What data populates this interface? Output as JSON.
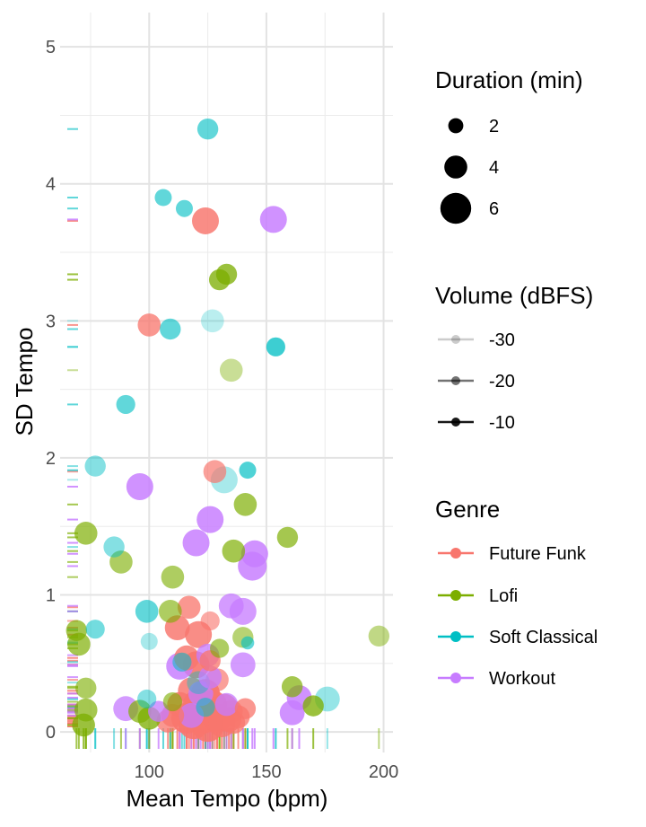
{
  "chart_data": {
    "type": "scatter",
    "title": "",
    "xlabel": "Mean Tempo (bpm)",
    "ylabel": "SD Tempo",
    "xlim": [
      62,
      204
    ],
    "ylim": [
      -0.15,
      5.25
    ],
    "x_ticks": [
      100,
      150,
      200
    ],
    "x_tick_labels": [
      "100",
      "150",
      "200"
    ],
    "y_ticks": [
      0,
      1,
      2,
      3,
      4,
      5
    ],
    "y_tick_labels": [
      "0",
      "1",
      "2",
      "3",
      "4",
      "5"
    ],
    "grid": true,
    "colors": {
      "Future Funk": "#F8766D",
      "Lofi": "#7CAE00",
      "Soft Classical": "#00BFC4",
      "Workout": "#C77CFF"
    },
    "legends": {
      "size": {
        "title": "Duration (min)",
        "entries": [
          {
            "label": "2",
            "value": 2
          },
          {
            "label": "4",
            "value": 4
          },
          {
            "label": "6",
            "value": 6
          }
        ]
      },
      "alpha": {
        "title": "Volume (dBFS)",
        "entries": [
          {
            "label": "-30",
            "value": -30
          },
          {
            "label": "-20",
            "value": -20
          },
          {
            "label": "-10",
            "value": -10
          }
        ]
      },
      "color": {
        "title": "Genre",
        "entries": [
          "Future Funk",
          "Lofi",
          "Soft Classical",
          "Workout"
        ]
      }
    },
    "rug": true,
    "series": [
      {
        "name": "Future Funk",
        "points": [
          {
            "x": 124,
            "y": 3.73,
            "duration": 5.0,
            "volume": -12
          },
          {
            "x": 100,
            "y": 2.97,
            "duration": 4.0,
            "volume": -14
          },
          {
            "x": 128,
            "y": 1.9,
            "duration": 4.0,
            "volume": -16
          },
          {
            "x": 117,
            "y": 0.91,
            "duration": 4.0,
            "volume": -14
          },
          {
            "x": 112,
            "y": 0.76,
            "duration": 4.5,
            "volume": -12
          },
          {
            "x": 121,
            "y": 0.71,
            "duration": 5.0,
            "volume": -12
          },
          {
            "x": 126,
            "y": 0.81,
            "duration": 3.0,
            "volume": -18
          },
          {
            "x": 116,
            "y": 0.54,
            "duration": 4.5,
            "volume": -12
          },
          {
            "x": 120,
            "y": 0.49,
            "duration": 5.0,
            "volume": -10
          },
          {
            "x": 126,
            "y": 0.52,
            "duration": 3.5,
            "volume": -14
          },
          {
            "x": 129,
            "y": 0.38,
            "duration": 4.0,
            "volume": -16
          },
          {
            "x": 118,
            "y": 0.3,
            "duration": 5.0,
            "volume": -12
          },
          {
            "x": 124,
            "y": 0.28,
            "duration": 5.5,
            "volume": -10
          },
          {
            "x": 113,
            "y": 0.2,
            "duration": 4.5,
            "volume": -12
          },
          {
            "x": 121,
            "y": 0.2,
            "duration": 6.0,
            "volume": -10
          },
          {
            "x": 127,
            "y": 0.2,
            "duration": 5.5,
            "volume": -10
          },
          {
            "x": 132,
            "y": 0.18,
            "duration": 5.0,
            "volume": -12
          },
          {
            "x": 135,
            "y": 0.15,
            "duration": 4.0,
            "volume": -14
          },
          {
            "x": 110,
            "y": 0.12,
            "duration": 4.0,
            "volume": -14
          },
          {
            "x": 116,
            "y": 0.1,
            "duration": 6.0,
            "volume": -10
          },
          {
            "x": 123,
            "y": 0.1,
            "duration": 6.0,
            "volume": -10
          },
          {
            "x": 129,
            "y": 0.1,
            "duration": 5.5,
            "volume": -10
          },
          {
            "x": 134,
            "y": 0.09,
            "duration": 4.5,
            "volume": -12
          },
          {
            "x": 138,
            "y": 0.11,
            "duration": 4.0,
            "volume": -14
          },
          {
            "x": 141,
            "y": 0.17,
            "duration": 3.5,
            "volume": -14
          },
          {
            "x": 108,
            "y": 0.08,
            "duration": 4.0,
            "volume": -14
          },
          {
            "x": 119,
            "y": 0.06,
            "duration": 6.0,
            "volume": -10
          },
          {
            "x": 125,
            "y": 0.04,
            "duration": 6.0,
            "volume": -10
          },
          {
            "x": 131,
            "y": 0.06,
            "duration": 5.0,
            "volume": -12
          },
          {
            "x": 136,
            "y": 0.07,
            "duration": 4.0,
            "volume": -14
          }
        ]
      },
      {
        "name": "Lofi",
        "points": [
          {
            "x": 130,
            "y": 3.3,
            "duration": 3.5,
            "volume": -14
          },
          {
            "x": 133,
            "y": 3.34,
            "duration": 3.5,
            "volume": -14
          },
          {
            "x": 135,
            "y": 2.64,
            "duration": 4.0,
            "volume": -24
          },
          {
            "x": 141,
            "y": 1.66,
            "duration": 4.0,
            "volume": -16
          },
          {
            "x": 73,
            "y": 1.45,
            "duration": 4.0,
            "volume": -16
          },
          {
            "x": 159,
            "y": 1.42,
            "duration": 3.5,
            "volume": -16
          },
          {
            "x": 136,
            "y": 1.32,
            "duration": 4.0,
            "volume": -16
          },
          {
            "x": 88,
            "y": 1.24,
            "duration": 4.0,
            "volume": -18
          },
          {
            "x": 110,
            "y": 1.13,
            "duration": 4.0,
            "volume": -18
          },
          {
            "x": 109,
            "y": 0.88,
            "duration": 4.0,
            "volume": -18
          },
          {
            "x": 69,
            "y": 0.74,
            "duration": 3.5,
            "volume": -16
          },
          {
            "x": 70,
            "y": 0.64,
            "duration": 4.0,
            "volume": -16
          },
          {
            "x": 140,
            "y": 0.69,
            "duration": 3.5,
            "volume": -20
          },
          {
            "x": 198,
            "y": 0.7,
            "duration": 3.5,
            "volume": -22
          },
          {
            "x": 130,
            "y": 0.61,
            "duration": 3.0,
            "volume": -18
          },
          {
            "x": 73,
            "y": 0.32,
            "duration": 3.5,
            "volume": -18
          },
          {
            "x": 161,
            "y": 0.33,
            "duration": 3.5,
            "volume": -16
          },
          {
            "x": 73,
            "y": 0.16,
            "duration": 4.0,
            "volume": -16
          },
          {
            "x": 170,
            "y": 0.19,
            "duration": 3.5,
            "volume": -14
          },
          {
            "x": 72,
            "y": 0.05,
            "duration": 4.0,
            "volume": -14
          },
          {
            "x": 100,
            "y": 0.1,
            "duration": 4.0,
            "volume": -14
          },
          {
            "x": 110,
            "y": 0.22,
            "duration": 3.0,
            "volume": -18
          },
          {
            "x": 96,
            "y": 0.15,
            "duration": 4.0,
            "volume": -16
          }
        ]
      },
      {
        "name": "Soft Classical",
        "points": [
          {
            "x": 125,
            "y": 4.4,
            "duration": 3.5,
            "volume": -18
          },
          {
            "x": 106,
            "y": 3.9,
            "duration": 2.5,
            "volume": -18
          },
          {
            "x": 115,
            "y": 3.82,
            "duration": 2.5,
            "volume": -18
          },
          {
            "x": 109,
            "y": 2.94,
            "duration": 3.5,
            "volume": -18
          },
          {
            "x": 127,
            "y": 3.0,
            "duration": 4.0,
            "volume": -28
          },
          {
            "x": 154,
            "y": 2.81,
            "duration": 3.0,
            "volume": -14
          },
          {
            "x": 90,
            "y": 2.39,
            "duration": 3.0,
            "volume": -18
          },
          {
            "x": 77,
            "y": 1.94,
            "duration": 3.5,
            "volume": -22
          },
          {
            "x": 132,
            "y": 1.84,
            "duration": 5.0,
            "volume": -26
          },
          {
            "x": 142,
            "y": 1.91,
            "duration": 2.5,
            "volume": -16
          },
          {
            "x": 85,
            "y": 1.35,
            "duration": 3.5,
            "volume": -22
          },
          {
            "x": 99,
            "y": 0.88,
            "duration": 4.0,
            "volume": -18
          },
          {
            "x": 77,
            "y": 0.75,
            "duration": 3.0,
            "volume": -20
          },
          {
            "x": 100,
            "y": 0.66,
            "duration": 2.5,
            "volume": -26
          },
          {
            "x": 142,
            "y": 0.65,
            "duration": 1.5,
            "volume": -18
          },
          {
            "x": 114,
            "y": 0.51,
            "duration": 3.0,
            "volume": -20
          },
          {
            "x": 121,
            "y": 0.36,
            "duration": 4.0,
            "volume": -24
          },
          {
            "x": 99,
            "y": 0.24,
            "duration": 3.0,
            "volume": -22
          },
          {
            "x": 176,
            "y": 0.24,
            "duration": 4.5,
            "volume": -24
          },
          {
            "x": 124,
            "y": 0.18,
            "duration": 3.0,
            "volume": -20
          }
        ]
      },
      {
        "name": "Workout",
        "points": [
          {
            "x": 153,
            "y": 3.74,
            "duration": 5.0,
            "volume": -12
          },
          {
            "x": 96,
            "y": 1.79,
            "duration": 5.0,
            "volume": -12
          },
          {
            "x": 126,
            "y": 1.55,
            "duration": 5.0,
            "volume": -12
          },
          {
            "x": 120,
            "y": 1.38,
            "duration": 5.0,
            "volume": -12
          },
          {
            "x": 145,
            "y": 1.3,
            "duration": 5.0,
            "volume": -12
          },
          {
            "x": 144,
            "y": 1.21,
            "duration": 5.5,
            "volume": -12
          },
          {
            "x": 135,
            "y": 0.92,
            "duration": 4.5,
            "volume": -14
          },
          {
            "x": 140,
            "y": 0.88,
            "duration": 5.0,
            "volume": -14
          },
          {
            "x": 125,
            "y": 0.56,
            "duration": 4.0,
            "volume": -14
          },
          {
            "x": 113,
            "y": 0.48,
            "duration": 5.0,
            "volume": -12
          },
          {
            "x": 140,
            "y": 0.49,
            "duration": 4.5,
            "volume": -14
          },
          {
            "x": 126,
            "y": 0.4,
            "duration": 4.0,
            "volume": -14
          },
          {
            "x": 122,
            "y": 0.28,
            "duration": 4.5,
            "volume": -14
          },
          {
            "x": 164,
            "y": 0.25,
            "duration": 4.5,
            "volume": -12
          },
          {
            "x": 90,
            "y": 0.17,
            "duration": 4.5,
            "volume": -14
          },
          {
            "x": 161,
            "y": 0.14,
            "duration": 4.5,
            "volume": -12
          },
          {
            "x": 104,
            "y": 0.15,
            "duration": 3.5,
            "volume": -14
          },
          {
            "x": 133,
            "y": 0.2,
            "duration": 4.0,
            "volume": -14
          },
          {
            "x": 118,
            "y": 0.12,
            "duration": 4.5,
            "volume": -14
          }
        ]
      }
    ]
  }
}
